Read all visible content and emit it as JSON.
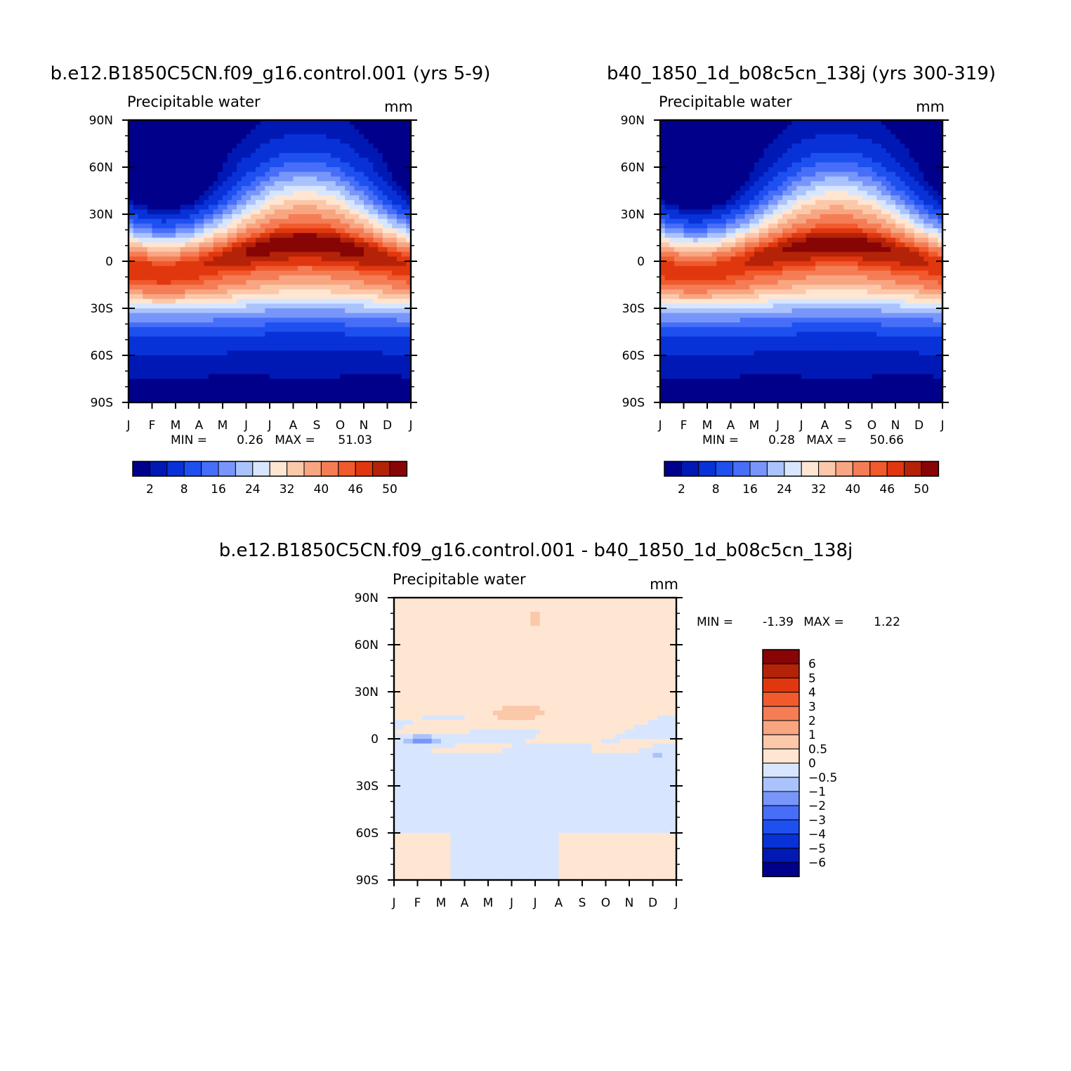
{
  "palette": {
    "full": [
      "#00008b",
      "#0019b4",
      "#0832d8",
      "#1e50f0",
      "#466ef8",
      "#7896fa",
      "#aac3fc",
      "#d7e6fe",
      "#ffe6d2",
      "#fcc8aa",
      "#f8a582",
      "#f57d55",
      "#f05a2d",
      "#e1370f",
      "#b42308",
      "#870505"
    ],
    "diff": [
      "#00008b",
      "#0019b4",
      "#0832d8",
      "#1e50f0",
      "#466ef8",
      "#7896fa",
      "#aac3fc",
      "#d7e6fe",
      "#ffe6d2",
      "#fcc8aa",
      "#f8a582",
      "#f57d55",
      "#f05a2d",
      "#e1370f",
      "#b42308",
      "#870505"
    ]
  },
  "chart_data": [
    {
      "type": "heatmap",
      "title": "b.e12.B1850C5CN.f09_g16.control.001 (yrs 5-9)",
      "variable": "Precipitable water",
      "units": "mm",
      "x": [
        "J",
        "F",
        "M",
        "A",
        "M",
        "J",
        "J",
        "A",
        "S",
        "O",
        "N",
        "D",
        "J"
      ],
      "y": [
        "90N",
        "60N",
        "30N",
        "0",
        "30S",
        "60S",
        "90S"
      ],
      "min_label": "MIN =",
      "min": "0.26",
      "max_label": "MAX =",
      "max": "51.03",
      "colorbar_labels": [
        "2",
        "8",
        "16",
        "24",
        "32",
        "40",
        "46",
        "50"
      ],
      "field": {
        "peak": 51.03,
        "floor": 0.26,
        "peak_month": 7.5,
        "itcz_amplitude": 8
      }
    },
    {
      "type": "heatmap",
      "title": "b40_1850_1d_b08c5cn_138j (yrs 300-319)",
      "variable": "Precipitable water",
      "units": "mm",
      "x": [
        "J",
        "F",
        "M",
        "A",
        "M",
        "J",
        "J",
        "A",
        "S",
        "O",
        "N",
        "D",
        "J"
      ],
      "y": [
        "90N",
        "60N",
        "30N",
        "0",
        "30S",
        "60S",
        "90S"
      ],
      "min_label": "MIN =",
      "min": "0.28",
      "max_label": "MAX =",
      "max": "50.66",
      "colorbar_labels": [
        "2",
        "8",
        "16",
        "24",
        "32",
        "40",
        "46",
        "50"
      ],
      "field": {
        "peak": 50.66,
        "floor": 0.28,
        "peak_month": 7.5,
        "itcz_amplitude": 8
      }
    },
    {
      "type": "heatmap",
      "title": "b.e12.B1850C5CN.f09_g16.control.001 - b40_1850_1d_b08c5cn_138j",
      "variable": "Precipitable water",
      "units": "mm",
      "x": [
        "J",
        "F",
        "M",
        "A",
        "M",
        "J",
        "J",
        "A",
        "S",
        "O",
        "N",
        "D",
        "J"
      ],
      "y": [
        "90N",
        "60N",
        "30N",
        "0",
        "30S",
        "60S",
        "90S"
      ],
      "min_label": "MIN =",
      "min": "-1.39",
      "max_label": "MAX =",
      "max": "1.22",
      "colorbar_labels": [
        "6",
        "5",
        "4",
        "3",
        "2",
        "1",
        "0.5",
        "0",
        "−0.5",
        "−1",
        "−2",
        "−3",
        "−4",
        "−5",
        "−6"
      ],
      "field": {
        "min": -1.39,
        "max": 1.22
      }
    }
  ]
}
